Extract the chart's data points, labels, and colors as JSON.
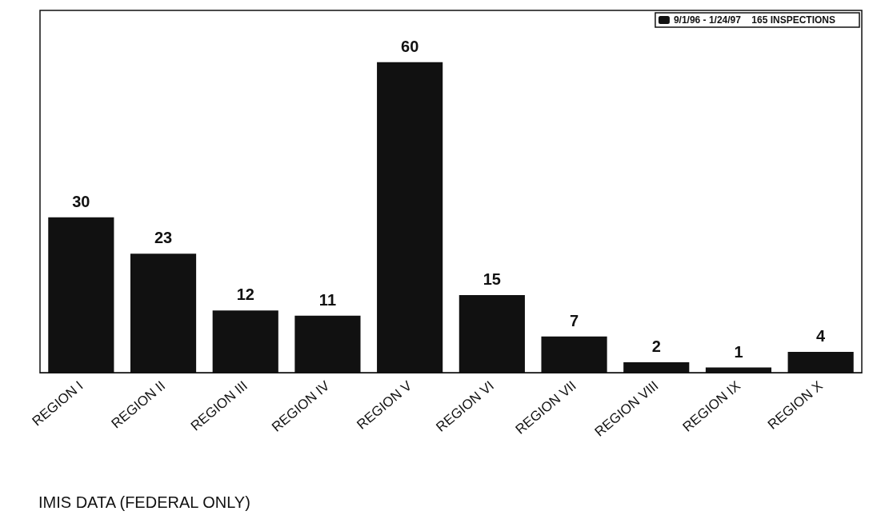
{
  "chart_data": {
    "type": "bar",
    "categories": [
      "REGION I",
      "REGION II",
      "REGION III",
      "REGION IV",
      "REGION V",
      "REGION VI",
      "REGION VII",
      "REGION VIII",
      "REGION IX",
      "REGION X"
    ],
    "series": [
      {
        "name": "9/1/96 - 1/24/97    165 INSPECTIONS",
        "color": "#111111",
        "values": [
          30,
          23,
          12,
          11,
          60,
          15,
          7,
          2,
          1,
          4
        ]
      }
    ],
    "data_labels": true,
    "legend": "top right",
    "grid": false,
    "tick_labels": "x",
    "annotations": [
      "IMIS DATA (FEDERAL ONLY)"
    ]
  }
}
